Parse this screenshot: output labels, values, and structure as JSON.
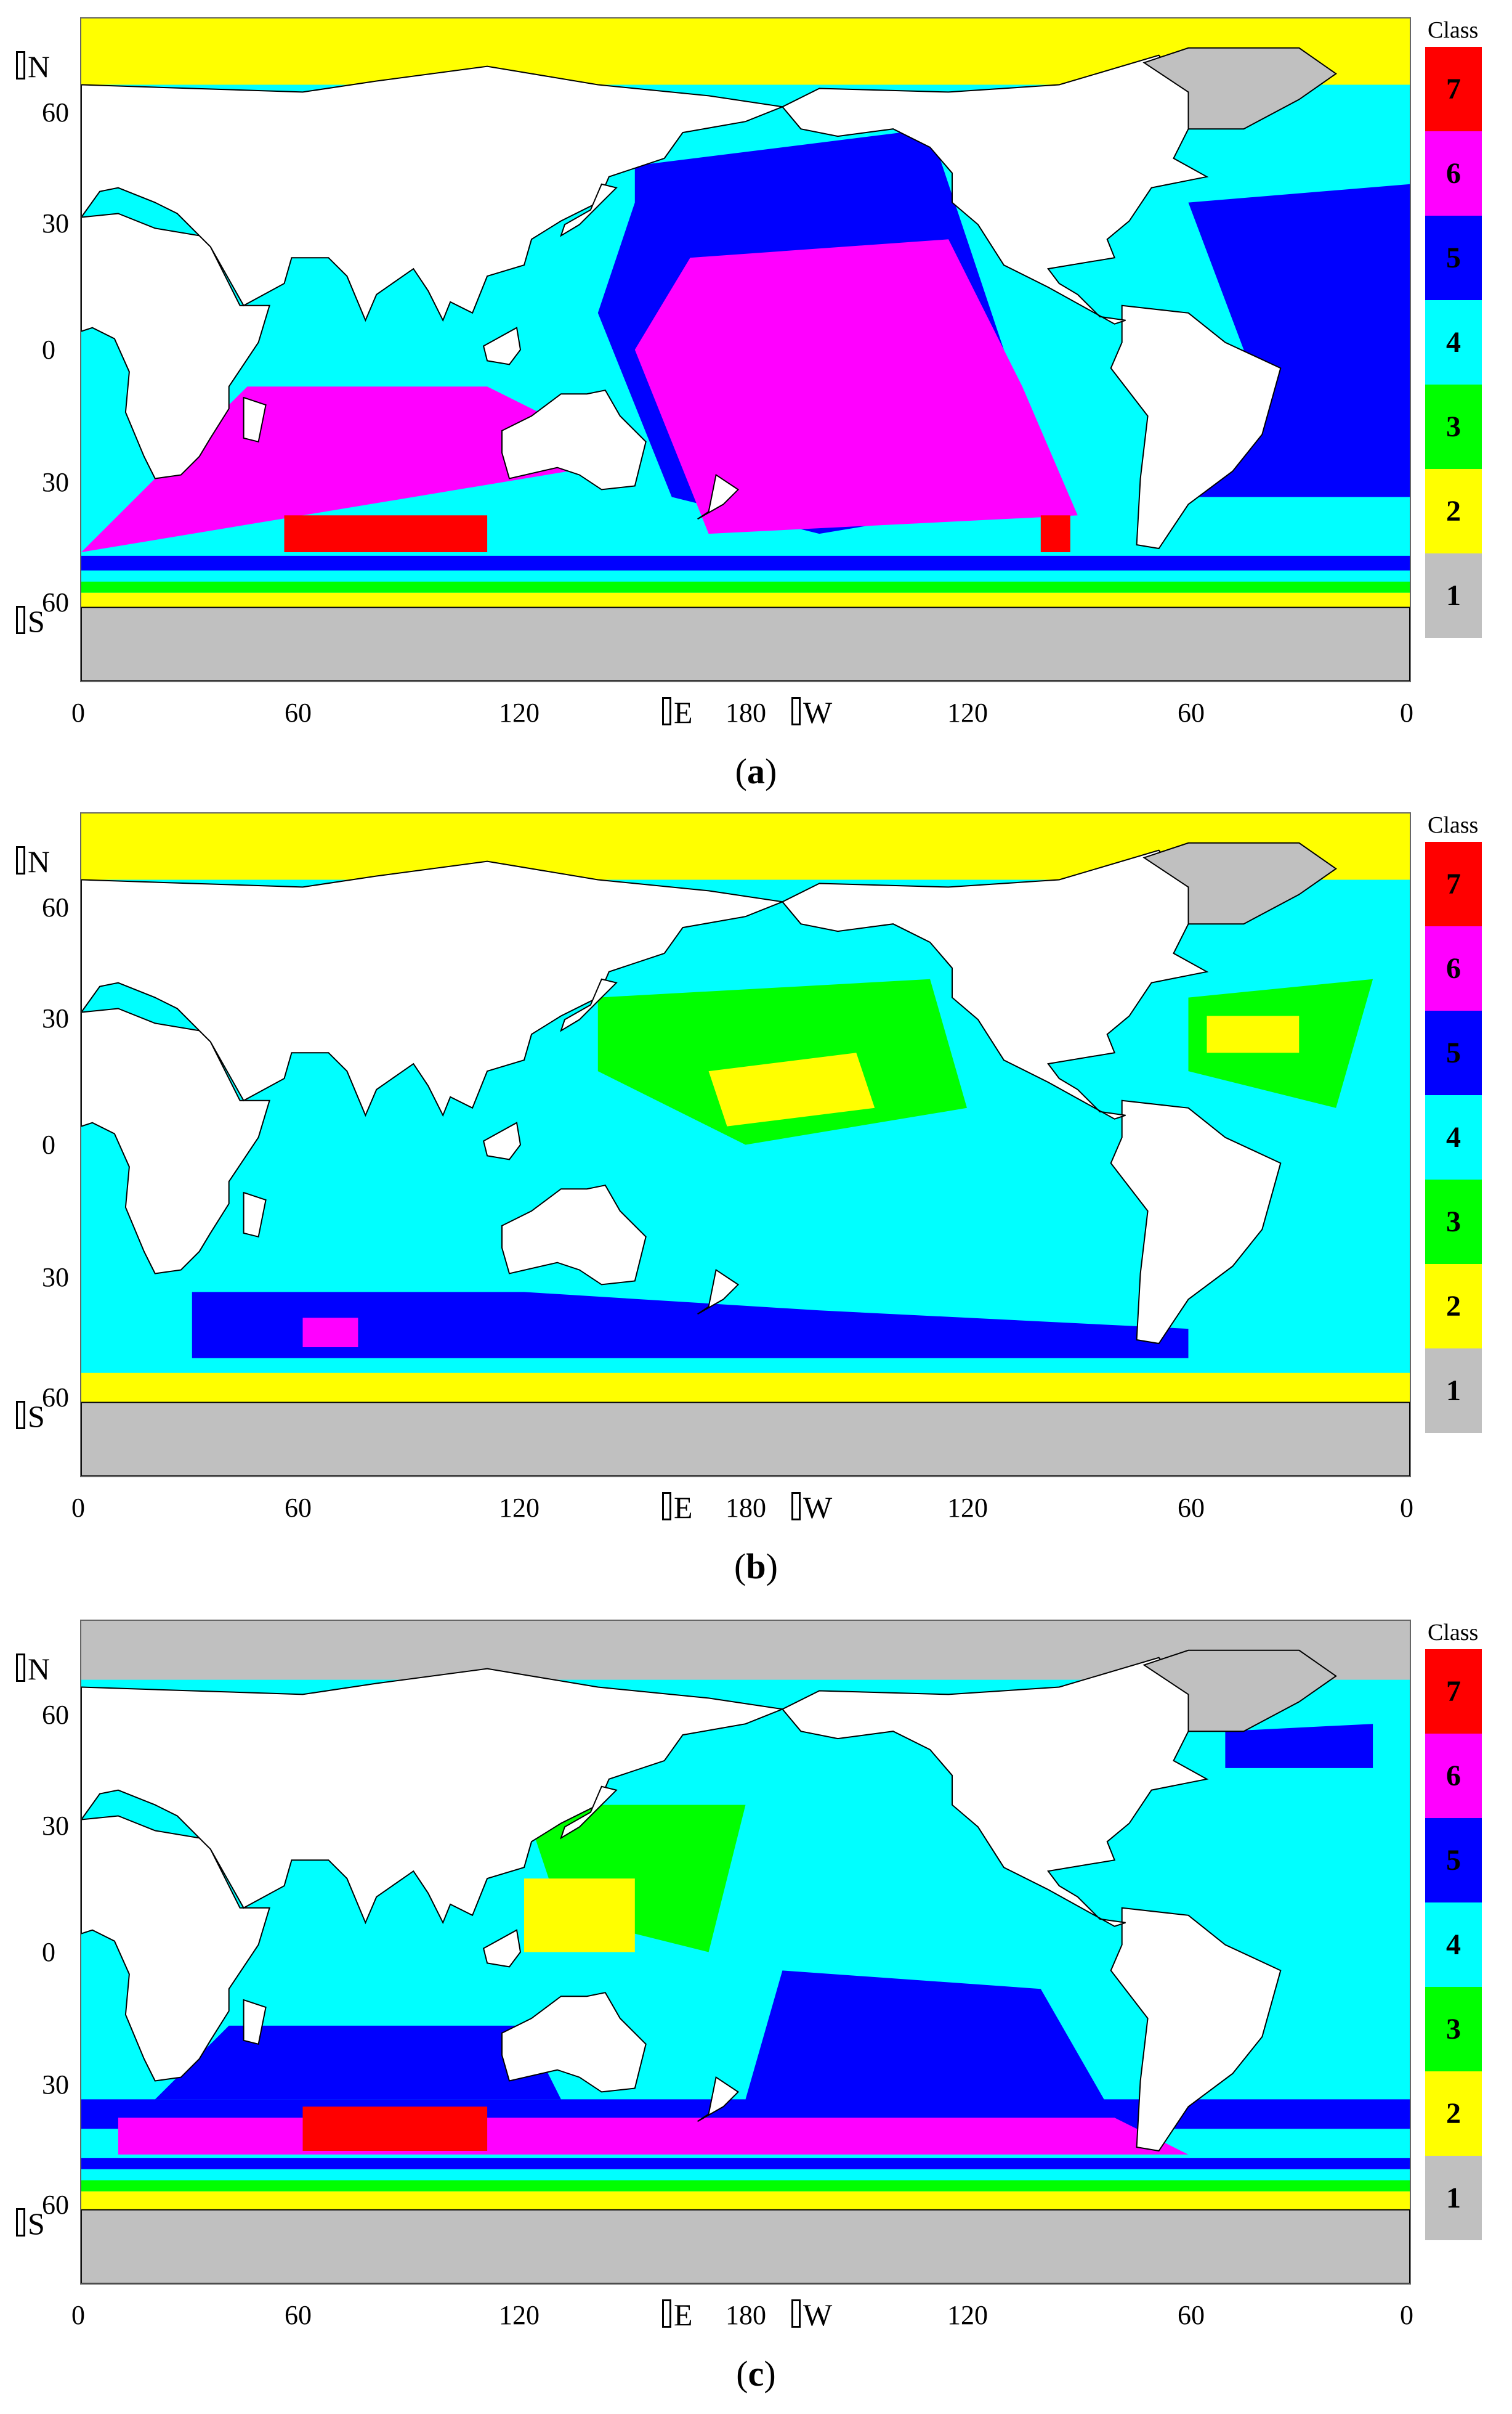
{
  "legend": {
    "title": "Class",
    "classes": [
      {
        "label": "7",
        "color": "#ff0000"
      },
      {
        "label": "6",
        "color": "#ff00ff"
      },
      {
        "label": "5",
        "color": "#0000ff"
      },
      {
        "label": "4",
        "color": "#00ffff"
      },
      {
        "label": "3",
        "color": "#00ff00"
      },
      {
        "label": "2",
        "color": "#ffff00"
      },
      {
        "label": "1",
        "color": "#c0c0c0"
      }
    ]
  },
  "axes": {
    "lat_ticks": [
      "60",
      "30",
      "0",
      "30",
      "60"
    ],
    "lon_ticks": [
      "0",
      "60",
      "120",
      "180",
      "120",
      "60",
      "0"
    ],
    "north": "N",
    "south": "S",
    "east": "E",
    "west": "W"
  },
  "panels": [
    {
      "open": "(",
      "letter": "a",
      "close": ")"
    },
    {
      "open": "(",
      "letter": "b",
      "close": ")"
    },
    {
      "open": "(",
      "letter": "c",
      "close": ")"
    }
  ]
}
